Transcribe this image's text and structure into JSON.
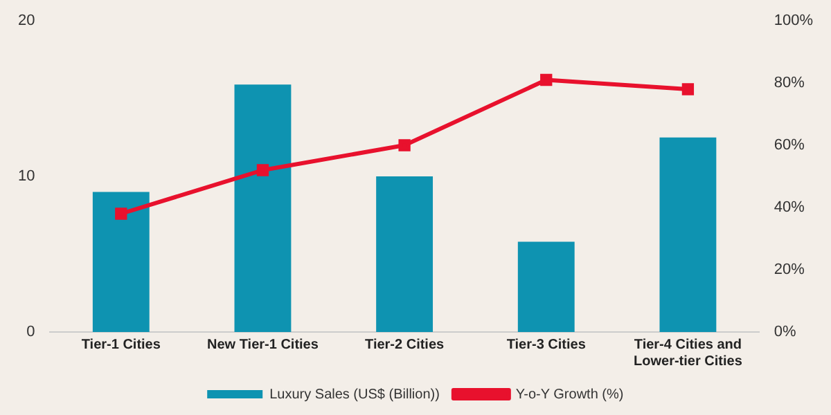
{
  "chart_data": {
    "type": "bar",
    "categories": [
      "Tier-1 Cities",
      "New Tier-1 Cities",
      "Tier-2 Cities",
      "Tier-3 Cities",
      "Tier-4 Cities and Lower-tier Cities"
    ],
    "series": [
      {
        "name": "Luxury Sales (US$ (Billion))",
        "color": "#0e93b1",
        "values": [
          9.0,
          15.9,
          10.0,
          5.8,
          12.5
        ]
      },
      {
        "name": "Y-o-Y Growth (%)",
        "type": "line",
        "axis": "y2",
        "color": "#e8112d",
        "marker": "square",
        "values": [
          38,
          52,
          60,
          81,
          78
        ]
      }
    ],
    "ylim": [
      0,
      20
    ],
    "yticks": [
      0,
      10,
      20
    ],
    "y2lim": [
      0,
      100
    ],
    "y2ticks": [
      {
        "value": 0,
        "label": "0%"
      },
      {
        "value": 20,
        "label": "20%"
      },
      {
        "value": 40,
        "label": "40%"
      },
      {
        "value": 60,
        "label": "60%"
      },
      {
        "value": 80,
        "label": "80%"
      },
      {
        "value": 100,
        "label": "100%"
      }
    ],
    "grid": false,
    "legend": "bottom"
  }
}
